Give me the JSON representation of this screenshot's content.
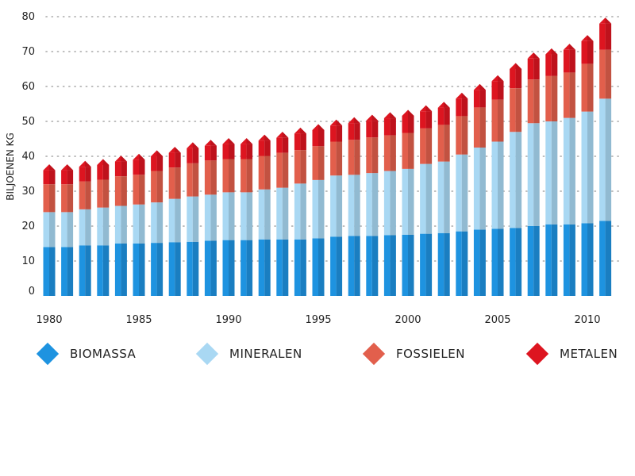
{
  "chart_data": {
    "type": "bar",
    "stacked": true,
    "ylabel": "BILJOENEN KG",
    "ylim": [
      0,
      80
    ],
    "yticks": [
      0,
      10,
      20,
      30,
      40,
      50,
      60,
      70,
      80
    ],
    "xtick_labels": [
      "1980",
      "1985",
      "1990",
      "1995",
      "2000",
      "2005",
      "2010"
    ],
    "grid": true,
    "legend_position": "bottom",
    "categories": [
      1980,
      1981,
      1982,
      1983,
      1984,
      1985,
      1986,
      1987,
      1988,
      1989,
      1990,
      1991,
      1992,
      1993,
      1994,
      1995,
      1996,
      1997,
      1998,
      1999,
      2000,
      2001,
      2002,
      2003,
      2004,
      2005,
      2006,
      2007,
      2008,
      2009,
      2010,
      2011
    ],
    "series": [
      {
        "name": "BIOMASSA",
        "color": "#1e93e0",
        "values": [
          14,
          14,
          14.5,
          14.5,
          15,
          15,
          15.2,
          15.4,
          15.5,
          15.8,
          16,
          16,
          16.2,
          16.2,
          16.2,
          16.5,
          17,
          17.2,
          17.2,
          17.4,
          17.5,
          17.8,
          18,
          18.5,
          19,
          19.2,
          19.5,
          20,
          20.5,
          20.5,
          20.8,
          21.5
        ]
      },
      {
        "name": "MINERALEN",
        "color": "#a9d8f3",
        "values": [
          10,
          10,
          10.3,
          10.8,
          10.8,
          11.2,
          11.6,
          12.4,
          13,
          13.2,
          13.7,
          13.7,
          14.3,
          14.8,
          16,
          16.7,
          17.5,
          17.5,
          18,
          18.4,
          18.9,
          20,
          20.5,
          22,
          23.5,
          25,
          27.5,
          29.5,
          29.5,
          30.5,
          32,
          35
        ]
      },
      {
        "name": "FOSSIELEN",
        "color": "#e25f4c",
        "values": [
          8,
          8,
          8,
          8,
          8.5,
          8.5,
          9,
          9,
          9.5,
          9.8,
          9.5,
          9.5,
          9.6,
          10,
          9.6,
          9.7,
          9.7,
          10,
          10.2,
          10.2,
          10.3,
          10.2,
          10.5,
          11,
          11.5,
          12,
          12.5,
          12.5,
          13,
          13,
          13.7,
          14
        ]
      },
      {
        "name": "METALEN",
        "color": "#dd1520",
        "values": [
          4,
          4,
          4.2,
          4.2,
          4.2,
          4.3,
          4.2,
          4.2,
          4.3,
          4.2,
          4.3,
          4.3,
          4.4,
          4.3,
          4.7,
          4.6,
          4.6,
          4.8,
          4.8,
          4.9,
          4.9,
          4.9,
          4.9,
          5,
          5,
          5.3,
          5.5,
          6,
          6.2,
          6.5,
          6.5,
          7.5
        ]
      }
    ]
  },
  "legend": [
    {
      "label": "BIOMASSA",
      "color": "#1e93e0",
      "icon": "diamond-icon"
    },
    {
      "label": "MINERALEN",
      "color": "#a9d8f3",
      "icon": "diamond-icon"
    },
    {
      "label": "FOSSIELEN",
      "color": "#e25f4c",
      "icon": "diamond-icon"
    },
    {
      "label": "METALEN",
      "color": "#dd1520",
      "icon": "diamond-icon"
    }
  ]
}
